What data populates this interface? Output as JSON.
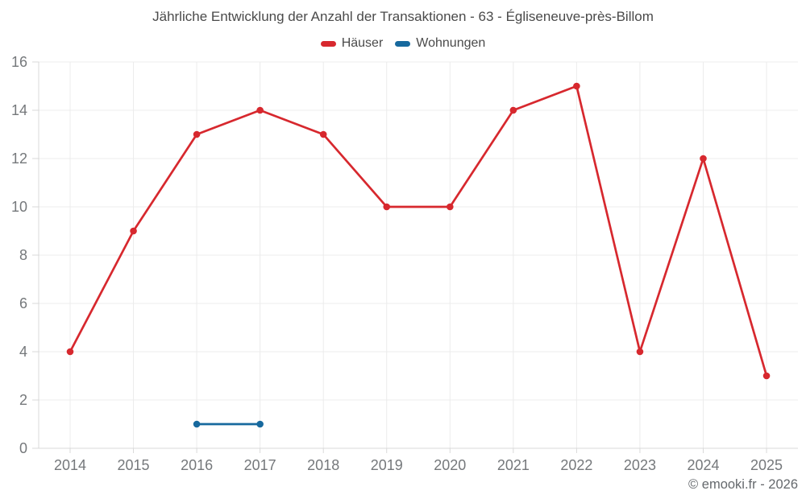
{
  "chart_data": {
    "type": "line",
    "title": "Jährliche Entwicklung der Anzahl der Transaktionen - 63 - Égliseneuve-près-Billom",
    "categories": [
      "2014",
      "2015",
      "2016",
      "2017",
      "2018",
      "2019",
      "2020",
      "2021",
      "2022",
      "2023",
      "2024",
      "2025"
    ],
    "yticks": [
      0,
      2,
      4,
      6,
      8,
      10,
      12,
      14,
      16
    ],
    "ylim": [
      0,
      16
    ],
    "grid": true,
    "legend_position": "top",
    "series": [
      {
        "name": "Häuser",
        "color": "#d7282e",
        "x": [
          "2014",
          "2015",
          "2016",
          "2017",
          "2018",
          "2019",
          "2020",
          "2021",
          "2022",
          "2023",
          "2024",
          "2025"
        ],
        "values": [
          4,
          9,
          13,
          14,
          13,
          10,
          10,
          14,
          15,
          4,
          12,
          3
        ]
      },
      {
        "name": "Wohnungen",
        "color": "#17699e",
        "x": [
          "2016",
          "2017"
        ],
        "values": [
          1,
          1
        ]
      }
    ]
  },
  "footer": {
    "text": "© emooki.fr - 2026"
  }
}
